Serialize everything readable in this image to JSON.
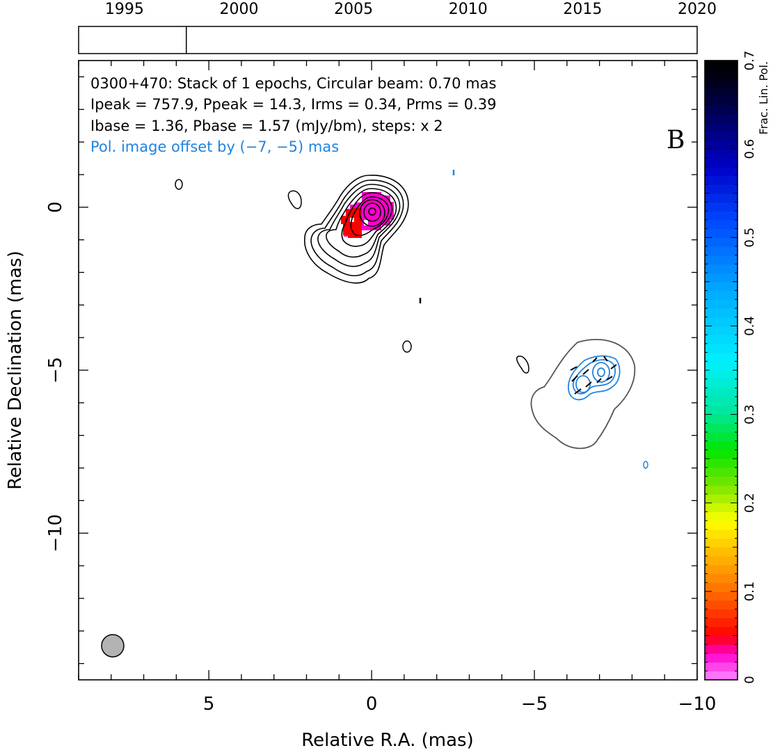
{
  "chart_data": {
    "type": "contour",
    "xlabel": "Relative R.A. (mas)",
    "ylabel": "Relative Declination (mas)",
    "xlim": [
      9,
      -10
    ],
    "ylim": [
      -14.5,
      4.5
    ],
    "x_ticks_major": [
      5,
      0,
      -5,
      -10
    ],
    "x_tick_labels": [
      "5",
      "0",
      "−5",
      "−10"
    ],
    "y_ticks_major": [
      0,
      -5,
      -10
    ],
    "y_tick_labels": [
      "0",
      "−5",
      "−10"
    ],
    "panel_letter": "B",
    "info_lines": [
      "0300+470: Stack of 1 epochs, Circular beam: 0.70 mas",
      "Ipeak = 757.9, Ppeak = 14.3, Irms = 0.34, Prms = 0.39",
      "Ibase = 1.36, Pbase = 1.57 (mJy/bm), steps: x 2"
    ],
    "pol_offset_note": "Pol. image offset by (−7, −5) mas",
    "pol_offset": [
      -7,
      -5
    ],
    "beam": {
      "x": 8,
      "y": -13.4,
      "diameter_mas": 0.7
    },
    "colorbar": {
      "label": "Frac. Lin. Pol.",
      "range": [
        0,
        0.7
      ],
      "tick_values": [
        0,
        0.1,
        0.2,
        0.3,
        0.4,
        0.5,
        0.6,
        0.7
      ],
      "tick_labels": [
        "0",
        "0.1",
        "0.2",
        "0.3",
        "0.4",
        "0.5",
        "0.6",
        "0.7"
      ]
    },
    "timeline": {
      "range": [
        1993,
        2020
      ],
      "tick_years": [
        1995,
        2000,
        2005,
        2010,
        2015,
        2020
      ],
      "tick_labels": [
        "1995",
        "2000",
        "2005",
        "2010",
        "2015",
        "2020"
      ],
      "epochs": [
        1997.7
      ]
    },
    "stokes_i_core": {
      "x": 0,
      "y": 0,
      "contours": 9
    },
    "polarized_component": {
      "x": -7,
      "y": -5,
      "contours": 4
    },
    "frac_pol_patches": [
      {
        "x": 0.0,
        "y": -0.15,
        "value": 0.02
      },
      {
        "x": 0.6,
        "y": -0.45,
        "value": 0.06
      }
    ],
    "colors": {
      "stokes_i": "#000000",
      "polarized_intensity": "#1f84e0",
      "faint_contour": "#555555",
      "beam_fill": "#b3b3b3",
      "evpa_ticks": "#000000"
    }
  }
}
